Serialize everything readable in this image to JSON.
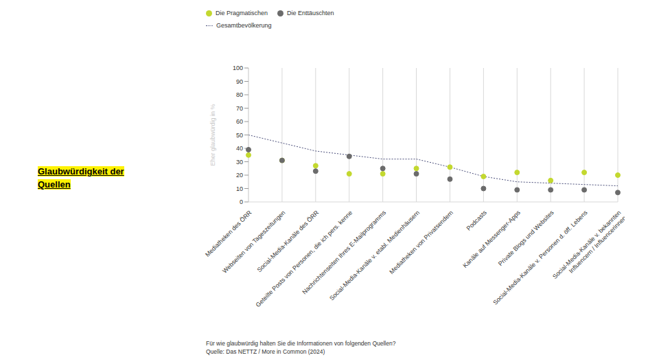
{
  "chart_data": {
    "type": "scatter",
    "title": "Glaubwürdigkeit der Quellen",
    "y_label": "Eher glaubwürdig in %",
    "annotations": [
      "Für wie glaubwürdig halten Sie die Informationen von folgenden Quellen?",
      "Quelle: Das NETTZ / More in Common (2024)"
    ],
    "categories": [
      "Mediatheken des ÖRR",
      "Webseiten von Tageszeitungen",
      "Social-Media-Kanäle des ÖRR",
      "Geteilte Posts von Personen, die ich pers. kenne",
      "Nachrichtenseiten Ihres E-Mailprogramms",
      "Social-Media-Kanäle v. etabl. Medienhäusern",
      "Mediatheken von Privatsendern",
      "Podcasts",
      "Kanäle auf Messenger-Apps",
      "Private Blogs und Websites",
      "Social-Media-Kanäle v. Personen d. öff. Lebens",
      "Social-Media-Kanäle v. bekannten Influencern / Influencerinnen"
    ],
    "series": [
      {
        "name": "Die Pragmatischen",
        "color": "#c3d82f",
        "type": "scatter",
        "marker": "circle",
        "values": [
          35,
          31,
          27,
          21,
          21,
          25,
          26,
          19,
          22,
          16,
          22,
          20
        ]
      },
      {
        "name": "Die Enttäuschten",
        "color": "#6b6b6b",
        "type": "scatter",
        "marker": "circle",
        "values": [
          39,
          31,
          23,
          34,
          25,
          21,
          17,
          10,
          9,
          9,
          9,
          7
        ]
      },
      {
        "name": "Gesamtbevölkerung",
        "color": "#4a4e7a",
        "type": "line",
        "line_style": "dotted",
        "values": [
          50,
          44,
          38,
          35,
          32,
          32,
          26,
          19,
          15,
          14,
          13,
          12
        ]
      }
    ],
    "ylim": [
      0,
      100
    ],
    "yticks": [
      0,
      10,
      20,
      30,
      40,
      50,
      60,
      70,
      80,
      90,
      100
    ],
    "grid": true,
    "legend": "top"
  }
}
